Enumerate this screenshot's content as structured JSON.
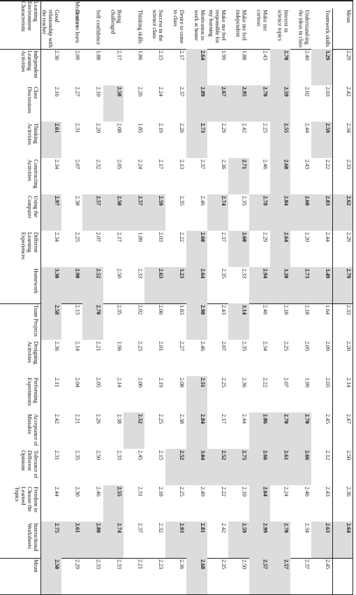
{
  "table": {
    "group_title": "Mean score",
    "corner": "Learning Environment Characteristic",
    "columns": [
      "Good relationship with the teacher",
      "Desire to learn",
      "Self confidence",
      "Being challenged",
      "Thinking skills",
      "Success in the science class",
      "Desire to come to class",
      "Motivation to work at home",
      "Make me feel responsible for my learning",
      "Make me feel independent",
      "Make me curious",
      "Interest in science topics",
      "Understand-ing the ideas in class",
      "Teamwork skills",
      "Mean"
    ],
    "rows": [
      {
        "label": "Independent Learning Activities",
        "cells": [
          {
            "text": "2.36"
          },
          {
            "text": "2.09"
          },
          {
            "text": "1.88"
          },
          {
            "text": "2.17"
          },
          {
            "text": "1.86"
          },
          {
            "text": "2.15"
          },
          {
            "text": "2.17"
          },
          {
            "text": "2.64",
            "highlight": true
          },
          {
            "text": "1.99"
          },
          {
            "text": "1.88"
          },
          {
            "text": "2.43"
          },
          {
            "text": "2.70",
            "highlight": true
          },
          {
            "text": "2.40"
          },
          {
            "text": "3.29",
            "highlight": true
          },
          {
            "text": "2.29"
          }
        ]
      },
      {
        "label": "Class Discussions",
        "cells": [
          {
            "text": "2.16"
          },
          {
            "text": "2.27"
          },
          {
            "text": "2.10"
          },
          {
            "text": "2.58",
            "highlight": true
          },
          {
            "text": "2.26"
          },
          {
            "text": "2.24"
          },
          {
            "text": "2.37"
          },
          {
            "text": "2.89",
            "highlight": true
          },
          {
            "text": "2.67",
            "highlight": true
          },
          {
            "text": "2.95",
            "highlight": true
          },
          {
            "text": "2.70",
            "highlight": true
          },
          {
            "text": "2.59",
            "highlight": true
          },
          {
            "text": "2.02"
          },
          {
            "text": "2.03"
          },
          {
            "text": "2.42"
          }
        ]
      },
      {
        "label": "Thinking Activities",
        "cells": [
          {
            "text": "2.61",
            "highlight": true
          },
          {
            "text": "2.31"
          },
          {
            "text": "2.20"
          },
          {
            "text": "2.08"
          },
          {
            "text": "1.85"
          },
          {
            "text": "2.19"
          },
          {
            "text": "2.26"
          },
          {
            "text": "2.73",
            "highlight": true
          },
          {
            "text": "2.29"
          },
          {
            "text": "2.42"
          },
          {
            "text": "2.25"
          },
          {
            "text": "2.55",
            "highlight": true
          },
          {
            "text": "2.44"
          },
          {
            "text": "2.59",
            "highlight": true
          },
          {
            "text": "2.34"
          }
        ]
      },
      {
        "label": "Constructing Activities",
        "cells": [
          {
            "text": "2.34"
          },
          {
            "text": "2.07"
          },
          {
            "text": "2.32"
          },
          {
            "text": "2.05"
          },
          {
            "text": "2.24"
          },
          {
            "text": "2.17"
          },
          {
            "text": "2.13"
          },
          {
            "text": "2.37"
          },
          {
            "text": "2.36"
          },
          {
            "text": "2.71",
            "highlight": true
          },
          {
            "text": "2.46"
          },
          {
            "text": "2.68",
            "highlight": true
          },
          {
            "text": "2.43"
          },
          {
            "text": "2.22"
          },
          {
            "text": "2.33"
          }
        ]
      },
      {
        "label": "Using the Computer",
        "cells": [
          {
            "text": "2.97",
            "highlight": true
          },
          {
            "text": "2.38"
          },
          {
            "text": "2.57",
            "highlight": true
          },
          {
            "text": "2.50",
            "highlight": true
          },
          {
            "text": "2.57",
            "highlight": true
          },
          {
            "text": "2.59",
            "highlight": true
          },
          {
            "text": "2.35"
          },
          {
            "text": "2.46"
          },
          {
            "text": "2.74",
            "highlight": true
          },
          {
            "text": "2.35"
          },
          {
            "text": "2.78",
            "highlight": true
          },
          {
            "text": "2.84",
            "highlight": true
          },
          {
            "text": "2.60",
            "highlight": true
          },
          {
            "text": "2.83",
            "highlight": true
          },
          {
            "text": "2.62",
            "highlight": true
          }
        ]
      },
      {
        "label": "Different Learning Experiences",
        "cells": [
          {
            "text": "2.34"
          },
          {
            "text": "2.25"
          },
          {
            "text": "2.07"
          },
          {
            "text": "2.17"
          },
          {
            "text": "1.89"
          },
          {
            "text": "2.03"
          },
          {
            "text": "2.22"
          },
          {
            "text": "2.60",
            "highlight": true
          },
          {
            "text": "2.37"
          },
          {
            "text": "2.60",
            "highlight": true
          },
          {
            "text": "2.29"
          },
          {
            "text": "2.64",
            "highlight": true
          },
          {
            "text": "2.20"
          },
          {
            "text": "2.44"
          },
          {
            "text": "2.29"
          }
        ]
      },
      {
        "label": "Homework",
        "cells": [
          {
            "text": "3.30",
            "highlight": true
          },
          {
            "text": "2.90",
            "highlight": true
          },
          {
            "text": "2.52",
            "highlight": true
          },
          {
            "text": "2.50"
          },
          {
            "text": "2.33"
          },
          {
            "text": "2.63",
            "highlight": true
          },
          {
            "text": "3.23",
            "highlight": true
          },
          {
            "text": "2.64",
            "highlight": true
          },
          {
            "text": "2.35"
          },
          {
            "text": "2.33"
          },
          {
            "text": "2.94",
            "highlight": true
          },
          {
            "text": "3.20",
            "highlight": true
          },
          {
            "text": "2.73",
            "highlight": true
          },
          {
            "text": "3.49",
            "highlight": true
          },
          {
            "text": "2.79",
            "highlight": true
          }
        ],
        "group_end": true
      },
      {
        "label": "Team Projects",
        "cells": [
          {
            "text": "2.58",
            "highlight": true
          },
          {
            "text": "2.13"
          },
          {
            "text": "2.70",
            "highlight": true
          },
          {
            "text": "2.35"
          },
          {
            "text": "2.02"
          },
          {
            "text": "2.06"
          },
          {
            "text": "1.83"
          },
          {
            "text": "2.98",
            "highlight": true
          },
          {
            "text": "2.43"
          },
          {
            "text": "3.14",
            "highlight": true
          },
          {
            "text": "2.46"
          },
          {
            "text": "2.18"
          },
          {
            "text": "2.18"
          },
          {
            "text": "1.64"
          },
          {
            "text": "2.33"
          }
        ]
      },
      {
        "label": "Designing Activities",
        "cells": [
          {
            "text": "2.36"
          },
          {
            "text": "2.14"
          },
          {
            "text": "2.21"
          },
          {
            "text": "1.96"
          },
          {
            "text": "2.25"
          },
          {
            "text": "2.01"
          },
          {
            "text": "2.27"
          },
          {
            "text": "2.46"
          },
          {
            "text": "2.07"
          },
          {
            "text": "2.35"
          },
          {
            "text": "2.34"
          },
          {
            "text": "2.25"
          },
          {
            "text": "2.05"
          },
          {
            "text": "2.09"
          },
          {
            "text": "2.20"
          }
        ]
      },
      {
        "label": "Performing Experiments",
        "cells": [
          {
            "text": "2.11"
          },
          {
            "text": "2.04"
          },
          {
            "text": "2.05"
          },
          {
            "text": "2.14"
          },
          {
            "text": "2.00"
          },
          {
            "text": "2.19"
          },
          {
            "text": "2.08"
          },
          {
            "text": "2.51",
            "highlight": true
          },
          {
            "text": "2.25"
          },
          {
            "text": "2.36"
          },
          {
            "text": "2.22"
          },
          {
            "text": "2.07"
          },
          {
            "text": "1.99"
          },
          {
            "text": "2.03"
          },
          {
            "text": "2.14"
          }
        ]
      },
      {
        "label": "Acceptance of Mistakes",
        "cells": [
          {
            "text": "2.42"
          },
          {
            "text": "2.21"
          },
          {
            "text": "2.26"
          },
          {
            "text": "2.38"
          },
          {
            "text": "2.52",
            "highlight": true
          },
          {
            "text": "2.25"
          },
          {
            "text": "2.38"
          },
          {
            "text": "2.84",
            "highlight": true
          },
          {
            "text": "2.17"
          },
          {
            "text": "2.44"
          },
          {
            "text": "2.86",
            "highlight": true
          },
          {
            "text": "2.70",
            "highlight": true
          },
          {
            "text": "2.70",
            "highlight": true
          },
          {
            "text": "2.45"
          },
          {
            "text": "2.47"
          }
        ]
      },
      {
        "label": "Tolerance of Different Opinions",
        "cells": [
          {
            "text": "2.31"
          },
          {
            "text": "2.35"
          },
          {
            "text": "2.50"
          },
          {
            "text": "2.33"
          },
          {
            "text": "2.45"
          },
          {
            "text": "2.15"
          },
          {
            "text": "2.52",
            "highlight": true
          },
          {
            "text": "3.04",
            "highlight": true
          },
          {
            "text": "2.52",
            "highlight": true
          },
          {
            "text": "2.75",
            "highlight": true
          },
          {
            "text": "2.66",
            "highlight": true
          },
          {
            "text": "2.61",
            "highlight": true
          },
          {
            "text": "2.66",
            "highlight": true
          },
          {
            "text": "2.12"
          },
          {
            "text": "2.50"
          }
        ]
      },
      {
        "label": "Freedom to Choose the Learned Topics",
        "cells": [
          {
            "text": "2.44"
          },
          {
            "text": "2.30"
          },
          {
            "text": "2.46"
          },
          {
            "text": "2.55",
            "highlight": true
          },
          {
            "text": "2.31"
          },
          {
            "text": "2.18"
          },
          {
            "text": "2.25"
          },
          {
            "text": "2.49"
          },
          {
            "text": "2.22"
          },
          {
            "text": "2.10"
          },
          {
            "text": "2.64",
            "highlight": true
          },
          {
            "text": "2.24"
          },
          {
            "text": "2.46"
          },
          {
            "text": "2.43"
          },
          {
            "text": "2.36"
          }
        ]
      },
      {
        "label": "Instructional Worksheets",
        "cells": [
          {
            "text": "2.75",
            "highlight": true
          },
          {
            "text": "2.61",
            "highlight": true
          },
          {
            "text": "2.80",
            "highlight": true
          },
          {
            "text": "2.74",
            "highlight": true
          },
          {
            "text": "2.37"
          },
          {
            "text": "2.32"
          },
          {
            "text": "2.93",
            "highlight": true
          },
          {
            "text": "2.81",
            "highlight": true
          },
          {
            "text": "2.42"
          },
          {
            "text": "2.59",
            "highlight": true
          },
          {
            "text": "2.99",
            "highlight": true
          },
          {
            "text": "2.70",
            "highlight": true
          },
          {
            "text": "2.34"
          },
          {
            "text": "2.63",
            "highlight": true
          },
          {
            "text": "2.64",
            "highlight": true
          }
        ],
        "group_end": true
      },
      {
        "label": "Mean",
        "cells": [
          {
            "text": "2.50",
            "highlight": true
          },
          {
            "text": "2.29"
          },
          {
            "text": "2.33"
          },
          {
            "text": "2.33"
          },
          {
            "text": "2.21"
          },
          {
            "text": "2.23"
          },
          {
            "text": "2.36"
          },
          {
            "text": "2.68",
            "highlight": true
          },
          {
            "text": "2.35"
          },
          {
            "text": "2.50"
          },
          {
            "text": "2.57",
            "highlight": true
          },
          {
            "text": "2.57",
            "highlight": true
          },
          {
            "text": "2.37"
          },
          {
            "text": "2.45"
          }
        ]
      }
    ]
  }
}
